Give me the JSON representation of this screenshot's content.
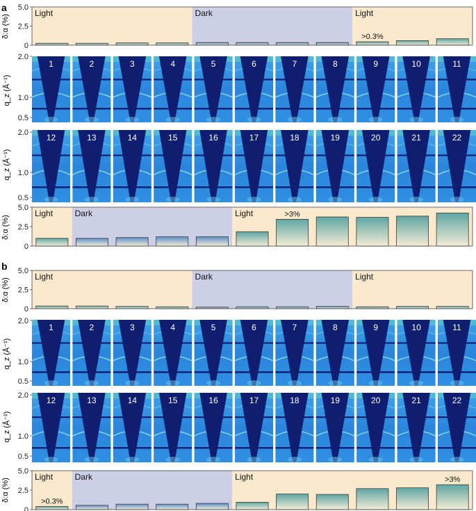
{
  "panels": [
    {
      "letter": "a",
      "ylabel_ratio": "δ:α (%)",
      "ylabel_qz": "q_z (Å⁻¹)",
      "qz_ticks": [
        "2.0",
        "1.0",
        "0.5"
      ],
      "tiles_row1": [
        "1",
        "2",
        "3",
        "4",
        "5",
        "6",
        "7",
        "8",
        "9",
        "10",
        "11"
      ],
      "tiles_row2": [
        "12",
        "13",
        "14",
        "15",
        "16",
        "17",
        "18",
        "19",
        "20",
        "21",
        "22"
      ]
    },
    {
      "letter": "b",
      "ylabel_ratio": "δ:α (%)",
      "ylabel_qz": "q_z (Å⁻¹)",
      "qz_ticks": [
        "2.0",
        "1.0",
        "0.5"
      ],
      "tiles_row1": [
        "1",
        "2",
        "3",
        "4",
        "5",
        "6",
        "7",
        "8",
        "9",
        "10",
        "11"
      ],
      "tiles_row2": [
        "12",
        "13",
        "14",
        "15",
        "16",
        "17",
        "18",
        "19",
        "20",
        "21",
        "22"
      ]
    }
  ],
  "colors": {
    "light_bg": "#fbe9cd",
    "dark_bg": "#cdcfe6",
    "bar_top_dark": "#5f90c8",
    "bar_top_light": "#5fa6a3",
    "bar_bottom": "#f3ecd6",
    "detector_bg": "#2f8fe0",
    "beamstop": "#101e72"
  },
  "chart_data": [
    {
      "type": "bar",
      "panel": "a",
      "position": "top",
      "ylim": [
        0,
        5
      ],
      "yticks": [
        "0",
        "2.5",
        "5.0"
      ],
      "categories": [
        "1",
        "2",
        "3",
        "4",
        "5",
        "6",
        "7",
        "8",
        "9",
        "10",
        "11"
      ],
      "values": [
        0.25,
        0.25,
        0.3,
        0.3,
        0.35,
        0.35,
        0.35,
        0.35,
        0.45,
        0.6,
        0.85
      ],
      "regions": [
        {
          "label": "Light",
          "type": "light",
          "from": 1,
          "to": 4
        },
        {
          "label": "Dark",
          "type": "dark",
          "from": 5,
          "to": 8
        },
        {
          "label": "Light",
          "type": "light",
          "from": 9,
          "to": 11
        }
      ],
      "annotation": {
        "text": ">0.3%",
        "category": "9"
      }
    },
    {
      "type": "bar",
      "panel": "a",
      "position": "bottom",
      "ylim": [
        0,
        5
      ],
      "yticks": [
        "0",
        "2.5",
        "5.0"
      ],
      "categories": [
        "12",
        "13",
        "14",
        "15",
        "16",
        "17",
        "18",
        "19",
        "20",
        "21",
        "22"
      ],
      "values": [
        1.0,
        1.0,
        1.1,
        1.2,
        1.2,
        1.85,
        3.45,
        3.75,
        3.7,
        3.85,
        4.25
      ],
      "regions": [
        {
          "label": "Light",
          "type": "light",
          "from": 12,
          "to": 12
        },
        {
          "label": "Dark",
          "type": "dark",
          "from": 13,
          "to": 16
        },
        {
          "label": "Light",
          "type": "light",
          "from": 17,
          "to": 22
        }
      ],
      "annotation": {
        "text": ">3%",
        "category": "18"
      }
    },
    {
      "type": "bar",
      "panel": "b",
      "position": "top",
      "ylim": [
        0,
        5
      ],
      "yticks": [
        "0",
        "2.5",
        "5.0"
      ],
      "categories": [
        "1",
        "2",
        "3",
        "4",
        "5",
        "6",
        "7",
        "8",
        "9",
        "10",
        "11"
      ],
      "values": [
        0.35,
        0.35,
        0.3,
        0.25,
        0.2,
        0.25,
        0.25,
        0.3,
        0.25,
        0.3,
        0.3
      ],
      "regions": [
        {
          "label": "Light",
          "type": "light",
          "from": 1,
          "to": 4
        },
        {
          "label": "Dark",
          "type": "dark",
          "from": 5,
          "to": 8
        },
        {
          "label": "Light",
          "type": "light",
          "from": 9,
          "to": 11
        }
      ]
    },
    {
      "type": "bar",
      "panel": "b",
      "position": "bottom",
      "ylim": [
        0,
        5
      ],
      "yticks": [
        "0",
        "2.5",
        "5.0"
      ],
      "categories": [
        "12",
        "13",
        "14",
        "15",
        "16",
        "17",
        "18",
        "19",
        "20",
        "21",
        "22"
      ],
      "values": [
        0.4,
        0.55,
        0.7,
        0.7,
        0.8,
        0.95,
        2.0,
        1.95,
        2.7,
        2.8,
        3.2
      ],
      "regions": [
        {
          "label": "Light",
          "type": "light",
          "from": 12,
          "to": 12
        },
        {
          "label": "Dark",
          "type": "dark",
          "from": 13,
          "to": 16
        },
        {
          "label": "Light",
          "type": "light",
          "from": 17,
          "to": 22
        }
      ],
      "annotation": {
        "text": ">3%",
        "category": "22"
      },
      "annotation_left": {
        "text": ">0.3%",
        "category": "12"
      }
    }
  ]
}
